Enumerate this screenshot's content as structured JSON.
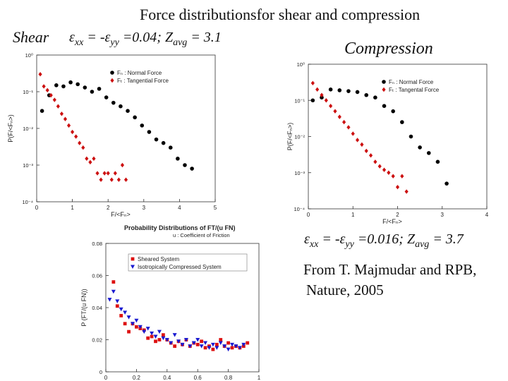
{
  "title": "Force distributionsfor shear and compression",
  "shear": {
    "label": "Shear",
    "eq_parts": [
      "ε",
      "xx",
      " = -ε",
      "yy",
      " =0.04;   Z",
      "avg",
      " = 3.1"
    ]
  },
  "compression": {
    "label": "Compression",
    "eq_parts": [
      "ε",
      "xx",
      " = -ε",
      "yy",
      " =0.016;   Z",
      "avg",
      " = 3.7"
    ]
  },
  "credit": [
    "From T. Majmudar and RPB,",
    "Nature, 2005"
  ],
  "colors": {
    "normal": "#000000",
    "tangential": "#cc1111",
    "sheared": "#dd1111",
    "iso": "#1a1ad0"
  },
  "chart_data": [
    {
      "id": "shear",
      "type": "scatter",
      "yscale": "log",
      "xlim": [
        0,
        5
      ],
      "ylim": [
        0.0001,
        1
      ],
      "xticks": [
        0,
        1,
        2,
        3,
        4,
        5
      ],
      "yticks": [
        "10⁰",
        "10⁻¹",
        "10⁻²",
        "10⁻³",
        "10⁻⁴"
      ],
      "xlabel": "F/<Fₙ>",
      "ylabel": "P(F/<Fₙ>)",
      "legend_position": "top-right",
      "series": [
        {
          "name": "Fₙ : Normal Force",
          "marker": "circle",
          "color": "#000000",
          "x": [
            0.15,
            0.35,
            0.55,
            0.75,
            0.95,
            1.15,
            1.35,
            1.55,
            1.75,
            1.95,
            2.15,
            2.35,
            2.55,
            2.75,
            2.95,
            3.15,
            3.35,
            3.55,
            3.75,
            3.95,
            4.15,
            4.35
          ],
          "y": [
            0.03,
            0.08,
            0.15,
            0.14,
            0.18,
            0.16,
            0.13,
            0.1,
            0.12,
            0.07,
            0.05,
            0.04,
            0.03,
            0.02,
            0.012,
            0.008,
            0.005,
            0.004,
            0.003,
            0.0015,
            0.001,
            0.0008
          ]
        },
        {
          "name": "Fₜ : Tangential Force",
          "marker": "diamond",
          "color": "#cc1111",
          "x": [
            0.1,
            0.2,
            0.3,
            0.4,
            0.5,
            0.6,
            0.7,
            0.8,
            0.9,
            1.0,
            1.1,
            1.2,
            1.3,
            1.4,
            1.5,
            1.6,
            1.7,
            1.8,
            1.9,
            2.0,
            2.1,
            2.2,
            2.3,
            2.4,
            2.5
          ],
          "y": [
            0.3,
            0.14,
            0.11,
            0.08,
            0.06,
            0.04,
            0.025,
            0.018,
            0.012,
            0.008,
            0.006,
            0.004,
            0.003,
            0.0015,
            0.0012,
            0.0015,
            0.0006,
            0.0004,
            0.0006,
            0.0006,
            0.0004,
            0.0006,
            0.0004,
            0.001,
            0.0004
          ]
        }
      ]
    },
    {
      "id": "compression",
      "type": "scatter",
      "yscale": "log",
      "xlim": [
        0,
        4
      ],
      "ylim": [
        0.0001,
        1
      ],
      "xticks": [
        0,
        1,
        2,
        3,
        4
      ],
      "yticks": [
        "10⁰",
        "10⁻¹",
        "10⁻²",
        "10⁻³",
        "10⁻⁴"
      ],
      "xlabel": "F/<Fₙ>",
      "ylabel": "P(F/<Fₙ>)",
      "legend_position": "top-right",
      "series": [
        {
          "name": "Fₙ : Normal Force",
          "marker": "circle",
          "color": "#000000",
          "x": [
            0.1,
            0.3,
            0.5,
            0.7,
            0.9,
            1.1,
            1.3,
            1.5,
            1.7,
            1.9,
            2.1,
            2.3,
            2.5,
            2.7,
            2.9,
            3.1
          ],
          "y": [
            0.1,
            0.12,
            0.2,
            0.19,
            0.18,
            0.17,
            0.14,
            0.12,
            0.07,
            0.05,
            0.025,
            0.01,
            0.005,
            0.0035,
            0.002,
            0.0005
          ]
        },
        {
          "name": "Fₜ : Tangental Force",
          "marker": "diamond",
          "color": "#cc1111",
          "x": [
            0.1,
            0.2,
            0.3,
            0.4,
            0.5,
            0.6,
            0.7,
            0.8,
            0.9,
            1.0,
            1.1,
            1.2,
            1.3,
            1.4,
            1.5,
            1.6,
            1.7,
            1.8,
            1.9,
            2.0,
            2.1,
            2.2
          ],
          "y": [
            0.3,
            0.2,
            0.14,
            0.1,
            0.07,
            0.05,
            0.035,
            0.025,
            0.018,
            0.012,
            0.008,
            0.006,
            0.004,
            0.003,
            0.002,
            0.0015,
            0.0012,
            0.001,
            0.0008,
            0.0004,
            0.0008,
            0.0003
          ]
        }
      ]
    },
    {
      "id": "probability",
      "type": "scatter",
      "yscale": "linear",
      "title": "Probability Distributions of  FT/(u FN)",
      "subtitle": "u : Coefficient of Friction",
      "xlim": [
        0,
        1
      ],
      "ylim": [
        0,
        0.08
      ],
      "xticks": [
        "0",
        "0.2",
        "0.4",
        "0.6",
        "0.8",
        "1"
      ],
      "yticks": [
        "0.08",
        "0.06",
        "0.04",
        "0.02",
        "0"
      ],
      "xlabel": "FT/(u FN)",
      "ylabel": "P (FT/(u FN))",
      "legend_position": "top-right",
      "series": [
        {
          "name": "Sheared System",
          "marker": "square",
          "color": "#dd1111",
          "x": [
            0.05,
            0.075,
            0.1,
            0.125,
            0.15,
            0.175,
            0.2,
            0.225,
            0.25,
            0.275,
            0.3,
            0.325,
            0.35,
            0.375,
            0.4,
            0.425,
            0.45,
            0.475,
            0.5,
            0.525,
            0.55,
            0.575,
            0.6,
            0.625,
            0.65,
            0.675,
            0.7,
            0.725,
            0.75,
            0.775,
            0.8,
            0.825,
            0.85,
            0.875,
            0.9,
            0.925
          ],
          "y": [
            0.056,
            0.041,
            0.035,
            0.03,
            0.025,
            0.03,
            0.028,
            0.027,
            0.026,
            0.021,
            0.022,
            0.019,
            0.02,
            0.023,
            0.02,
            0.018,
            0.016,
            0.019,
            0.017,
            0.02,
            0.016,
            0.018,
            0.017,
            0.019,
            0.015,
            0.016,
            0.014,
            0.017,
            0.02,
            0.016,
            0.018,
            0.015,
            0.016,
            0.015,
            0.016,
            0.018
          ]
        },
        {
          "name": "Isotropically Compressed System",
          "marker": "triangle-down",
          "color": "#1a1ad0",
          "x": [
            0.025,
            0.05,
            0.075,
            0.1,
            0.125,
            0.15,
            0.175,
            0.2,
            0.225,
            0.25,
            0.275,
            0.3,
            0.325,
            0.35,
            0.375,
            0.4,
            0.425,
            0.45,
            0.475,
            0.5,
            0.525,
            0.55,
            0.575,
            0.6,
            0.625,
            0.65,
            0.675,
            0.7,
            0.725,
            0.75,
            0.775,
            0.8,
            0.825,
            0.85,
            0.875,
            0.9
          ],
          "y": [
            0.045,
            0.05,
            0.044,
            0.039,
            0.037,
            0.034,
            0.03,
            0.032,
            0.028,
            0.025,
            0.027,
            0.024,
            0.022,
            0.025,
            0.021,
            0.02,
            0.018,
            0.023,
            0.019,
            0.017,
            0.02,
            0.016,
            0.018,
            0.02,
            0.016,
            0.018,
            0.015,
            0.017,
            0.015,
            0.018,
            0.016,
            0.014,
            0.017,
            0.016,
            0.015,
            0.017
          ]
        }
      ]
    }
  ]
}
